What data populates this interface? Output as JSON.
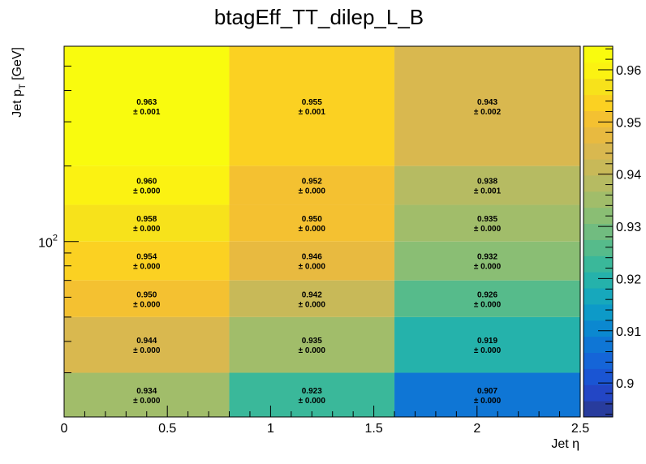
{
  "chart_data": {
    "type": "heatmap",
    "title": "btagEff_TT_dilep_L_B",
    "xlabel": "Jet η",
    "ylabel_main": "Jet p",
    "ylabel_sub": "T",
    "ylabel_unit": " [GeV]",
    "x_edges": [
      0,
      0.8,
      1.6,
      2.5
    ],
    "y_edges": [
      20,
      30,
      50,
      70,
      100,
      140,
      200,
      600
    ],
    "x_ticks": [
      {
        "value": 0,
        "label": "0"
      },
      {
        "value": 0.5,
        "label": "0.5"
      },
      {
        "value": 1,
        "label": "1"
      },
      {
        "value": 1.5,
        "label": "1.5"
      },
      {
        "value": 2,
        "label": "2"
      },
      {
        "value": 2.5,
        "label": "2.5"
      }
    ],
    "y_tick_label": {
      "base": "10",
      "exp": "2",
      "value": 100
    },
    "cells": [
      {
        "xi": 0,
        "yi": 0,
        "value": "0.934",
        "error": "± 0.000"
      },
      {
        "xi": 1,
        "yi": 0,
        "value": "0.923",
        "error": "± 0.000"
      },
      {
        "xi": 2,
        "yi": 0,
        "value": "0.907",
        "error": "± 0.000"
      },
      {
        "xi": 0,
        "yi": 1,
        "value": "0.944",
        "error": "± 0.000"
      },
      {
        "xi": 1,
        "yi": 1,
        "value": "0.935",
        "error": "± 0.000"
      },
      {
        "xi": 2,
        "yi": 1,
        "value": "0.919",
        "error": "± 0.000"
      },
      {
        "xi": 0,
        "yi": 2,
        "value": "0.950",
        "error": "± 0.000"
      },
      {
        "xi": 1,
        "yi": 2,
        "value": "0.942",
        "error": "± 0.000"
      },
      {
        "xi": 2,
        "yi": 2,
        "value": "0.926",
        "error": "± 0.000"
      },
      {
        "xi": 0,
        "yi": 3,
        "value": "0.954",
        "error": "± 0.000"
      },
      {
        "xi": 1,
        "yi": 3,
        "value": "0.946",
        "error": "± 0.000"
      },
      {
        "xi": 2,
        "yi": 3,
        "value": "0.932",
        "error": "± 0.000"
      },
      {
        "xi": 0,
        "yi": 4,
        "value": "0.958",
        "error": "± 0.000"
      },
      {
        "xi": 1,
        "yi": 4,
        "value": "0.950",
        "error": "± 0.000"
      },
      {
        "xi": 2,
        "yi": 4,
        "value": "0.935",
        "error": "± 0.000"
      },
      {
        "xi": 0,
        "yi": 5,
        "value": "0.960",
        "error": "± 0.000"
      },
      {
        "xi": 1,
        "yi": 5,
        "value": "0.952",
        "error": "± 0.000"
      },
      {
        "xi": 2,
        "yi": 5,
        "value": "0.938",
        "error": "± 0.001"
      },
      {
        "xi": 0,
        "yi": 6,
        "value": "0.963",
        "error": "± 0.001"
      },
      {
        "xi": 1,
        "yi": 6,
        "value": "0.955",
        "error": "± 0.001"
      },
      {
        "xi": 2,
        "yi": 6,
        "value": "0.943",
        "error": "± 0.002"
      }
    ],
    "zlim": [
      0.8935,
      0.9645
    ],
    "z_ticks": [
      {
        "value": 0.9,
        "label": "0.9"
      },
      {
        "value": 0.91,
        "label": "0.91"
      },
      {
        "value": 0.92,
        "label": "0.92"
      },
      {
        "value": 0.93,
        "label": "0.93"
      },
      {
        "value": 0.94,
        "label": "0.94"
      },
      {
        "value": 0.95,
        "label": "0.95"
      },
      {
        "value": 0.96,
        "label": "0.96"
      }
    ],
    "palette": [
      "#283c9d",
      "#2346c5",
      "#1a55d3",
      "#1565d8",
      "#0f76d5",
      "#0b88d0",
      "#0d9ac8",
      "#17a8bc",
      "#25b2ab",
      "#3ab89a",
      "#56bb8b",
      "#71bc80",
      "#8abe74",
      "#a1bd6a",
      "#b6bb62",
      "#c8b958",
      "#d9b84f",
      "#e8ba40",
      "#f4c131",
      "#fbd122",
      "#f7e21b",
      "#fbf212",
      "#f9fb0e"
    ]
  }
}
